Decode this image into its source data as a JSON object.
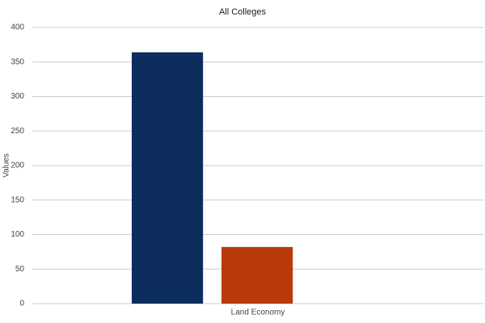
{
  "chart_data": {
    "type": "bar",
    "title": "All Colleges",
    "y_label": "Values",
    "categories": [
      "Land Economy"
    ],
    "series": [
      {
        "color": "#0c2d5e",
        "values": [
          364
        ]
      },
      {
        "color": "#b93a0a",
        "values": [
          82
        ]
      }
    ],
    "ylim": [
      0,
      400
    ],
    "yticks": [
      0,
      50,
      100,
      150,
      200,
      250,
      300,
      350,
      400
    ],
    "grid": true
  }
}
